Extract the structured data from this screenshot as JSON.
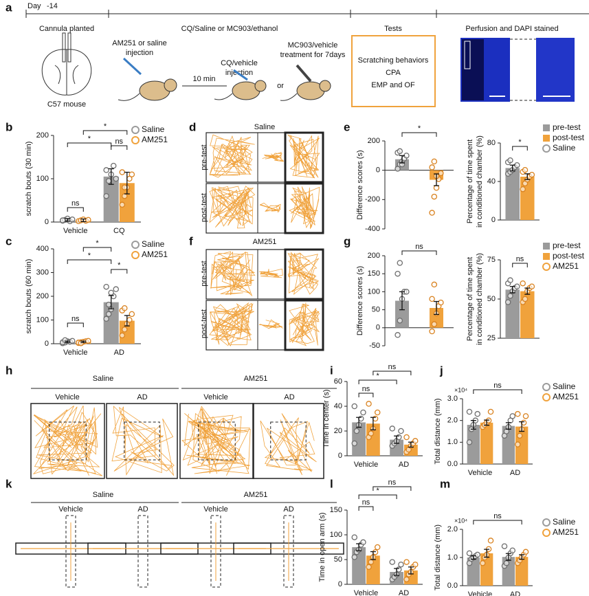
{
  "panels": [
    "a",
    "b",
    "c",
    "d",
    "e",
    "f",
    "g",
    "h",
    "i",
    "j",
    "k",
    "l",
    "m"
  ],
  "timeline": {
    "day": "Day",
    "day_value": "-14",
    "phases": [
      "Cannula planted",
      "CQ/Saline or  MC903/ethanol",
      "Tests",
      "Perfusion and DAPI stained"
    ],
    "brain_label": "C57 mouse",
    "step1": [
      "AM251 or saline",
      "injection"
    ],
    "interval": "10 min",
    "step2": [
      "CQ/vehicle",
      "injection"
    ],
    "or": "or",
    "step3": [
      "MC903/vehicle",
      "treatment for 7days"
    ],
    "tests": [
      "Scratching behaviors",
      "CPA",
      "EMP and OF"
    ]
  },
  "tracks": {
    "d": {
      "title": "Saline",
      "rows": [
        "pre-test",
        "post-test"
      ]
    },
    "f": {
      "title": "AM251",
      "rows": [
        "pre-test",
        "post-test"
      ]
    },
    "h": {
      "groups": [
        "Saline",
        "AM251"
      ],
      "conditions": [
        "Vehicle",
        "AD",
        "Vehicle",
        "AD"
      ]
    },
    "k": {
      "groups": [
        "Saline",
        "AM251"
      ],
      "conditions": [
        "Vehicle",
        "AD",
        "Vehicle",
        "AD"
      ]
    }
  },
  "chart_data": [
    {
      "type": "bar",
      "ylabel": "scratch bouts (30 min)",
      "categories": [
        "Vehicle",
        "CQ"
      ],
      "ylim": [
        0,
        200
      ],
      "yticks": [
        0,
        100,
        200
      ],
      "legend_marker": "circle",
      "annotations": [
        "*",
        "*",
        "ns",
        "ns"
      ],
      "series": [
        {
          "name": "Saline",
          "color": "#9b9b9b",
          "values": [
            5,
            105
          ],
          "errors": [
            3,
            18
          ],
          "points": [
            [
              3,
              5,
              8,
              2,
              6,
              4
            ],
            [
              60,
              95,
              110,
              130,
              100,
              120
            ]
          ]
        },
        {
          "name": "AM251",
          "color": "#f0a23c",
          "values": [
            4,
            90
          ],
          "errors": [
            3,
            25
          ],
          "points": [
            [
              2,
              4,
              6,
              3,
              5
            ],
            [
              40,
              60,
              80,
              100,
              110,
              115,
              80
            ]
          ]
        }
      ]
    },
    {
      "type": "bar",
      "ylabel": "scratch bouts (60 min)",
      "categories": [
        "Vehicle",
        "AD"
      ],
      "ylim": [
        0,
        400
      ],
      "yticks": [
        0,
        100,
        200,
        300,
        400
      ],
      "legend_marker": "circle",
      "annotations": [
        "*",
        "*",
        "*",
        "ns"
      ],
      "series": [
        {
          "name": "Saline",
          "color": "#9b9b9b",
          "values": [
            8,
            175
          ],
          "errors": [
            3,
            28
          ],
          "points": [
            [
              2,
              5,
              10,
              8,
              12,
              6,
              15
            ],
            [
              105,
              125,
              145,
              200,
              230,
              240,
              165,
              215
            ]
          ]
        },
        {
          "name": "AM251",
          "color": "#f0a23c",
          "values": [
            8,
            97
          ],
          "errors": [
            3,
            22
          ],
          "points": [
            [
              3,
              6,
              8,
              10,
              12,
              5,
              2
            ],
            [
              35,
              60,
              85,
              100,
              125,
              140,
              150
            ]
          ]
        }
      ]
    },
    {
      "type": "bar",
      "ylabel": "Difference scores (s)",
      "categories": [
        null,
        null
      ],
      "ylim": [
        -400,
        200
      ],
      "yticks": [
        -400,
        -200,
        0,
        200
      ],
      "values": [
        75,
        -65
      ],
      "errors": [
        25,
        40
      ],
      "colors": [
        "#9b9b9b",
        "#f0a23c"
      ],
      "annotations": [
        "*"
      ],
      "points": [
        [
          10,
          40,
          60,
          80,
          100,
          120,
          130,
          40
        ],
        [
          -290,
          -180,
          -120,
          -60,
          -20,
          20,
          60,
          -40
        ]
      ]
    },
    {
      "type": "bar",
      "ylabel": [
        "Percentage of time spent",
        "in conditioned chamber (%)"
      ],
      "categories": [
        null
      ],
      "ylim": [
        0,
        80
      ],
      "yticks": [
        0,
        40,
        80
      ],
      "legend_marker": "square",
      "group_label": "Saline",
      "group_color": "#9b9b9b",
      "annotations": [
        "*"
      ],
      "series": [
        {
          "name": "pre-test",
          "color": "#9b9b9b",
          "values": [
            54
          ],
          "errors": [
            3
          ],
          "points": [
            [
              48,
              50,
              52,
              55,
              57,
              60,
              62
            ]
          ]
        },
        {
          "name": "post-test",
          "color": "#f0a23c",
          "values": [
            45
          ],
          "errors": [
            3
          ],
          "points": [
            [
              32,
              38,
              42,
              45,
              47,
              50,
              52
            ]
          ]
        }
      ]
    },
    {
      "type": "bar",
      "ylabel": "Difference scores (s)",
      "categories": [
        null,
        null
      ],
      "ylim": [
        -50,
        200
      ],
      "yticks": [
        -50,
        0,
        50,
        100,
        150,
        200
      ],
      "values": [
        75,
        55
      ],
      "errors": [
        25,
        18
      ],
      "colors": [
        "#9b9b9b",
        "#f0a23c"
      ],
      "annotations": [
        "ns"
      ],
      "points": [
        [
          -20,
          20,
          80,
          100,
          100,
          150,
          180
        ],
        [
          -10,
          10,
          40,
          60,
          70,
          80,
          120
        ]
      ]
    },
    {
      "type": "bar",
      "ylabel": [
        "Percentage of time spent",
        "in conditioned chamber (%)"
      ],
      "categories": [
        null
      ],
      "ylim": [
        25,
        75
      ],
      "yticks": [
        25,
        50,
        75
      ],
      "legend_marker": "square",
      "group_label": "AM251",
      "group_color": "#f0a23c",
      "annotations": [
        "ns"
      ],
      "series": [
        {
          "name": "pre-test",
          "color": "#9b9b9b",
          "values": [
            56
          ],
          "errors": [
            2
          ],
          "points": [
            [
              48,
              52,
              55,
              57,
              58,
              60,
              62
            ]
          ]
        },
        {
          "name": "post-test",
          "color": "#f0a23c",
          "values": [
            55
          ],
          "errors": [
            2
          ],
          "points": [
            [
              48,
              50,
              55,
              57,
              58,
              60
            ]
          ]
        }
      ]
    },
    {
      "type": "bar",
      "ylabel": "Time in center (s)",
      "categories": [
        "Vehicle",
        "AD"
      ],
      "ylim": [
        0,
        60
      ],
      "yticks": [
        0,
        20,
        40,
        60
      ],
      "annotations": [
        "ns",
        "*",
        "ns"
      ],
      "series": [
        {
          "name": "Saline",
          "color": "#9b9b9b",
          "values": [
            27,
            13
          ],
          "errors": [
            4,
            3
          ],
          "points": [
            [
              10,
              20,
              25,
              30,
              35,
              40
            ],
            [
              8,
              10,
              12,
              15,
              20,
              22
            ]
          ]
        },
        {
          "name": "AM251",
          "color": "#f0a23c",
          "values": [
            26,
            9
          ],
          "errors": [
            5,
            2
          ],
          "points": [
            [
              15,
              18,
              22,
              30,
              35,
              42
            ],
            [
              3,
              5,
              8,
              10,
              12,
              15
            ]
          ]
        }
      ]
    },
    {
      "type": "bar",
      "ylabel": "Total distance (mm)",
      "multiplier": "×10⁴",
      "categories": [
        "Vehicle",
        "AD"
      ],
      "ylim": [
        0,
        3
      ],
      "yticks": [
        {
          "value": 0,
          "label": "0.0"
        },
        {
          "value": 1,
          "label": "1.0"
        },
        {
          "value": 2,
          "label": "2.0"
        },
        {
          "value": 3,
          "label": "3.0"
        }
      ],
      "legend_marker": "circle",
      "annotations": [
        "ns"
      ],
      "series": [
        {
          "name": "Saline",
          "color": "#9b9b9b",
          "values": [
            1.8,
            1.75
          ],
          "errors": [
            0.2,
            0.15
          ],
          "points": [
            [
              1.0,
              1.6,
              1.8,
              2.0,
              2.3,
              2.4
            ],
            [
              1.3,
              1.5,
              1.7,
              2.0,
              2.2
            ]
          ]
        },
        {
          "name": "AM251",
          "color": "#f0a23c",
          "values": [
            1.9,
            1.72
          ],
          "errors": [
            0.12,
            0.22
          ],
          "points": [
            [
              1.7,
              1.8,
              1.9,
              2.0,
              2.4
            ],
            [
              0.9,
              1.3,
              1.6,
              1.9,
              2.2,
              2.3
            ]
          ]
        }
      ]
    },
    {
      "type": "bar",
      "ylabel": "Time in open arm (s)",
      "categories": [
        "Vehicle",
        "AD"
      ],
      "ylim": [
        0,
        150
      ],
      "yticks": [
        0,
        50,
        100,
        150
      ],
      "annotations": [
        "ns",
        "*",
        "ns"
      ],
      "series": [
        {
          "name": "Saline",
          "color": "#9b9b9b",
          "values": [
            75,
            25
          ],
          "errors": [
            7,
            7
          ],
          "points": [
            [
              55,
              65,
              70,
              80,
              85,
              95
            ],
            [
              10,
              15,
              20,
              30,
              40,
              45
            ]
          ]
        },
        {
          "name": "AM251",
          "color": "#f0a23c",
          "values": [
            58,
            28
          ],
          "errors": [
            8,
            7
          ],
          "points": [
            [
              35,
              45,
              55,
              65,
              75
            ],
            [
              10,
              20,
              25,
              35,
              40,
              45
            ]
          ]
        }
      ]
    },
    {
      "type": "bar",
      "ylabel": "Total distance (mm)",
      "multiplier": "×10⁴",
      "categories": [
        "Vehicle",
        "AD"
      ],
      "ylim": [
        0,
        2
      ],
      "yticks": [
        {
          "value": 0,
          "label": "0.0"
        },
        {
          "value": 1,
          "label": "1.0"
        },
        {
          "value": 2,
          "label": "2.0"
        }
      ],
      "legend_marker": "circle",
      "annotations": [
        "ns"
      ],
      "series": [
        {
          "name": "Saline",
          "color": "#9b9b9b",
          "values": [
            1.0,
            1.02
          ],
          "errors": [
            0.06,
            0.12
          ],
          "points": [
            [
              0.8,
              0.95,
              1.0,
              1.05,
              1.1,
              1.15
            ],
            [
              0.7,
              0.8,
              1.0,
              1.15,
              1.25,
              1.4
            ]
          ]
        },
        {
          "name": "AM251",
          "color": "#f0a23c",
          "values": [
            1.15,
            1.02
          ],
          "errors": [
            0.14,
            0.08
          ],
          "points": [
            [
              0.8,
              1.0,
              1.1,
              1.3,
              1.6
            ],
            [
              0.8,
              0.9,
              1.0,
              1.1,
              1.2
            ]
          ]
        }
      ]
    }
  ]
}
